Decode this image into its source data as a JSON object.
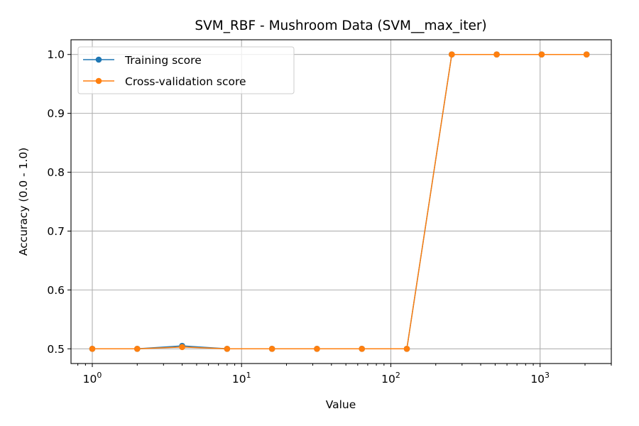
{
  "chart_data": {
    "type": "line",
    "title": "SVM_RBF - Mushroom Data (SVM__max_iter)",
    "xlabel": "Value",
    "ylabel": "Accuracy (0.0 - 1.0)",
    "xscale": "log",
    "xlim": [
      0.72,
      3000
    ],
    "ylim": [
      0.475,
      1.025
    ],
    "grid": true,
    "legend_position": "top-left",
    "x": [
      1,
      2,
      4,
      8,
      16,
      32,
      64,
      128,
      256,
      512,
      1024,
      2048
    ],
    "x_tick_base": "10",
    "x_ticks": [
      {
        "value": 1,
        "exponent": "0"
      },
      {
        "value": 10,
        "exponent": "1"
      },
      {
        "value": 100,
        "exponent": "2"
      },
      {
        "value": 1000,
        "exponent": "3"
      }
    ],
    "y_ticks": [
      {
        "value": 0.5,
        "label": "0.5"
      },
      {
        "value": 0.6,
        "label": "0.6"
      },
      {
        "value": 0.7,
        "label": "0.7"
      },
      {
        "value": 0.8,
        "label": "0.8"
      },
      {
        "value": 0.9,
        "label": "0.9"
      },
      {
        "value": 1.0,
        "label": "1.0"
      }
    ],
    "series": [
      {
        "name": "Training score",
        "color": "#1f77b4",
        "values": [
          0.5,
          0.5,
          0.505,
          0.5,
          0.5,
          0.5,
          0.5,
          0.5,
          1.0,
          1.0,
          1.0,
          1.0
        ]
      },
      {
        "name": "Cross-validation score",
        "color": "#ff7f0e",
        "values": [
          0.5,
          0.5,
          0.503,
          0.5,
          0.5,
          0.5,
          0.5,
          0.5,
          1.0,
          1.0,
          1.0,
          1.0
        ]
      }
    ]
  }
}
